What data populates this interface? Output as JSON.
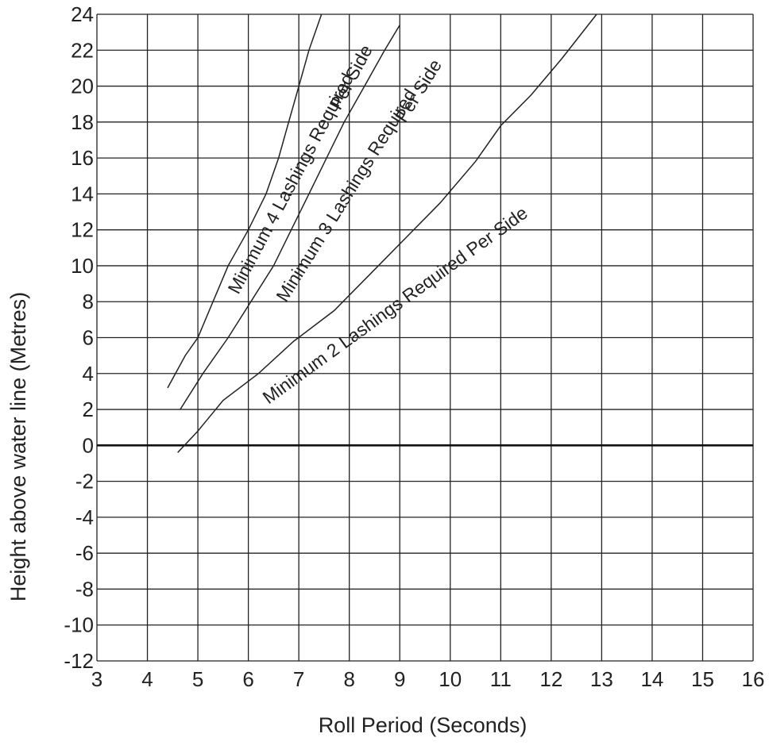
{
  "chart_data": {
    "type": "line",
    "title": "",
    "xlabel": "Roll Period (Seconds)",
    "ylabel": "Height above water line (Metres)",
    "xlim": [
      3,
      16
    ],
    "ylim": [
      -12,
      24
    ],
    "xticks": [
      3,
      4,
      5,
      6,
      7,
      8,
      9,
      10,
      11,
      12,
      13,
      14,
      15,
      16
    ],
    "yticks": [
      24,
      22,
      20,
      18,
      16,
      14,
      12,
      10,
      8,
      6,
      4,
      2,
      0,
      -2,
      -4,
      -6,
      -8,
      -10,
      -12
    ],
    "grid": true,
    "legend": "none",
    "series": [
      {
        "key": "four",
        "points": [
          [
            4.4,
            3.2
          ],
          [
            4.75,
            5
          ],
          [
            5.0,
            6
          ],
          [
            5.3,
            8
          ],
          [
            5.6,
            10
          ],
          [
            6.0,
            12
          ],
          [
            6.35,
            14
          ],
          [
            6.6,
            16
          ],
          [
            6.8,
            18
          ],
          [
            7.0,
            20
          ],
          [
            7.2,
            22
          ],
          [
            7.45,
            24
          ]
        ]
      },
      {
        "key": "three",
        "points": [
          [
            4.65,
            2
          ],
          [
            5.1,
            4
          ],
          [
            5.6,
            6
          ],
          [
            6.05,
            8
          ],
          [
            6.5,
            10
          ],
          [
            6.85,
            12
          ],
          [
            7.2,
            14
          ],
          [
            7.55,
            16
          ],
          [
            7.9,
            18
          ],
          [
            8.3,
            20
          ],
          [
            8.7,
            22
          ],
          [
            9.0,
            23.4
          ]
        ]
      },
      {
        "key": "two",
        "points": [
          [
            4.6,
            -0.4
          ],
          [
            5.0,
            0.8
          ],
          [
            5.5,
            2.5
          ],
          [
            6.2,
            4
          ],
          [
            6.9,
            5.8
          ],
          [
            7.7,
            7.5
          ],
          [
            8.4,
            9.5
          ],
          [
            9.1,
            11.5
          ],
          [
            9.8,
            13.5
          ],
          [
            10.5,
            15.8
          ],
          [
            11.0,
            17.8
          ],
          [
            11.6,
            19.5
          ],
          [
            12.2,
            21.5
          ],
          [
            12.9,
            24
          ]
        ]
      }
    ],
    "annotations": [
      {
        "key": "four_a",
        "text": "Minimum 4 Lashings Required"
      },
      {
        "key": "four_b",
        "text": "Per Side"
      },
      {
        "key": "three_a",
        "text": "Minimum 3 Lashings Required"
      },
      {
        "key": "three_b",
        "text": "Per Side"
      },
      {
        "key": "two_a",
        "text": "Minimum 2 Lashings Required Per Side"
      }
    ]
  }
}
